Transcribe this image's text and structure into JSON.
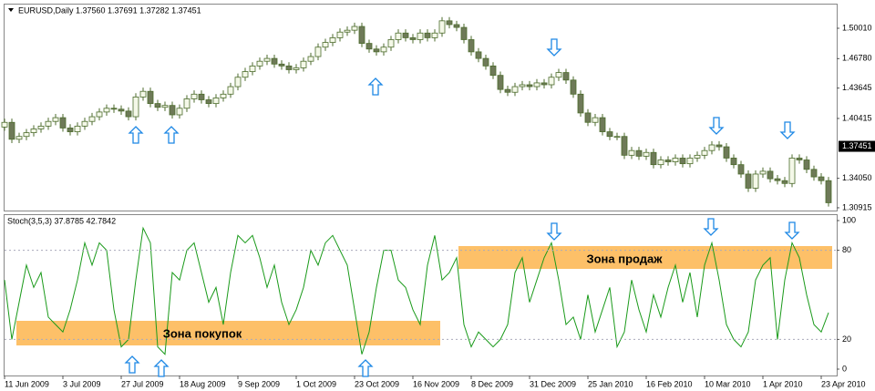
{
  "chart_data": {
    "type": "candlestick",
    "title": "EURUSD,Daily  1.37560 1.37691 1.37282 1.37451",
    "up_color": "#f4f8e8",
    "down_color": "#6e7a58",
    "wick_color": "#4c6b2c",
    "categories": [
      "11 Jun 2009",
      null,
      null,
      null,
      null,
      null,
      null,
      null,
      "3 Jul 2009",
      null,
      null,
      null,
      null,
      null,
      null,
      null,
      "27 Jul 2009",
      null,
      null,
      null,
      null,
      null,
      null,
      null,
      "18 Aug 2009",
      null,
      null,
      null,
      null,
      null,
      null,
      null,
      "9 Sep 2009",
      null,
      null,
      null,
      null,
      null,
      null,
      null,
      "1 Oct 2009",
      null,
      null,
      null,
      null,
      null,
      null,
      null,
      "23 Oct 2009",
      null,
      null,
      null,
      null,
      null,
      null,
      null,
      "16 Nov 2009",
      null,
      null,
      null,
      null,
      null,
      null,
      null,
      "8 Dec 2009",
      null,
      null,
      null,
      null,
      null,
      null,
      null,
      "31 Dec 2009",
      null,
      null,
      null,
      null,
      null,
      null,
      null,
      "25 Jan 2010",
      null,
      null,
      null,
      null,
      null,
      null,
      null,
      "16 Feb 2010",
      null,
      null,
      null,
      null,
      null,
      null,
      null,
      "10 Mar 2010",
      null,
      null,
      null,
      null,
      null,
      null,
      null,
      "1 Apr 2010",
      null,
      null,
      null,
      null,
      null,
      null,
      null,
      "23 Apr 2010",
      null
    ],
    "open": [
      1.395,
      1.4,
      1.382,
      1.385,
      1.389,
      1.393,
      1.396,
      1.401,
      1.405,
      1.394,
      1.39,
      1.396,
      1.401,
      1.406,
      1.411,
      1.415,
      1.414,
      1.412,
      1.406,
      1.427,
      1.433,
      1.42,
      1.416,
      1.418,
      1.408,
      1.415,
      1.425,
      1.43,
      1.424,
      1.42,
      1.426,
      1.43,
      1.438,
      1.448,
      1.454,
      1.46,
      1.465,
      1.468,
      1.462,
      1.46,
      1.456,
      1.458,
      1.465,
      1.47,
      1.48,
      1.485,
      1.49,
      1.496,
      1.498,
      1.502,
      1.484,
      1.478,
      1.475,
      1.48,
      1.488,
      1.495,
      1.49,
      1.488,
      1.495,
      1.49,
      1.495,
      1.508,
      1.504,
      1.501,
      1.488,
      1.475,
      1.468,
      1.46,
      1.45,
      1.435,
      1.432,
      1.438,
      1.44,
      1.438,
      1.442,
      1.44,
      1.448,
      1.453,
      1.445,
      1.43,
      1.41,
      1.4,
      1.405,
      1.39,
      1.385,
      1.385,
      1.365,
      1.37,
      1.364,
      1.368,
      1.355,
      1.36,
      1.358,
      1.362,
      1.356,
      1.362,
      1.365,
      1.37,
      1.376,
      1.374,
      1.362,
      1.355,
      1.345,
      1.33,
      1.345,
      1.348,
      1.34,
      1.338,
      1.335,
      1.362,
      1.36,
      1.35,
      1.342,
      1.338
    ],
    "high": [
      1.404,
      1.404,
      1.389,
      1.393,
      1.397,
      1.4,
      1.405,
      1.409,
      1.409,
      1.398,
      1.4,
      1.405,
      1.41,
      1.415,
      1.419,
      1.419,
      1.418,
      1.416,
      1.431,
      1.437,
      1.437,
      1.424,
      1.422,
      1.422,
      1.419,
      1.429,
      1.434,
      1.434,
      1.428,
      1.43,
      1.434,
      1.442,
      1.452,
      1.458,
      1.464,
      1.469,
      1.472,
      1.472,
      1.466,
      1.464,
      1.462,
      1.469,
      1.474,
      1.484,
      1.489,
      1.494,
      1.5,
      1.502,
      1.506,
      1.506,
      1.488,
      1.482,
      1.484,
      1.492,
      1.499,
      1.499,
      1.494,
      1.499,
      1.499,
      1.499,
      1.512,
      1.512,
      1.508,
      1.505,
      1.492,
      1.479,
      1.472,
      1.464,
      1.454,
      1.439,
      1.442,
      1.444,
      1.444,
      1.446,
      1.446,
      1.452,
      1.457,
      1.457,
      1.449,
      1.434,
      1.414,
      1.409,
      1.409,
      1.394,
      1.389,
      1.389,
      1.374,
      1.374,
      1.372,
      1.372,
      1.364,
      1.364,
      1.366,
      1.366,
      1.366,
      1.369,
      1.374,
      1.38,
      1.38,
      1.378,
      1.366,
      1.359,
      1.349,
      1.349,
      1.352,
      1.352,
      1.344,
      1.342,
      1.366,
      1.366,
      1.364,
      1.354,
      1.346,
      1.342
    ],
    "low": [
      1.391,
      1.378,
      1.378,
      1.381,
      1.385,
      1.389,
      1.392,
      1.397,
      1.39,
      1.386,
      1.386,
      1.392,
      1.397,
      1.402,
      1.407,
      1.41,
      1.408,
      1.402,
      1.402,
      1.423,
      1.416,
      1.412,
      1.412,
      1.404,
      1.404,
      1.411,
      1.421,
      1.42,
      1.416,
      1.416,
      1.422,
      1.426,
      1.434,
      1.444,
      1.45,
      1.456,
      1.461,
      1.458,
      1.456,
      1.452,
      1.452,
      1.454,
      1.461,
      1.466,
      1.476,
      1.481,
      1.486,
      1.492,
      1.494,
      1.48,
      1.474,
      1.471,
      1.471,
      1.476,
      1.484,
      1.486,
      1.484,
      1.484,
      1.486,
      1.486,
      1.491,
      1.5,
      1.497,
      1.484,
      1.471,
      1.464,
      1.456,
      1.446,
      1.431,
      1.428,
      1.428,
      1.434,
      1.434,
      1.434,
      1.436,
      1.436,
      1.444,
      1.441,
      1.426,
      1.406,
      1.396,
      1.396,
      1.386,
      1.381,
      1.381,
      1.361,
      1.361,
      1.36,
      1.36,
      1.351,
      1.351,
      1.354,
      1.354,
      1.352,
      1.352,
      1.358,
      1.361,
      1.366,
      1.37,
      1.358,
      1.351,
      1.341,
      1.326,
      1.326,
      1.341,
      1.336,
      1.334,
      1.331,
      1.331,
      1.356,
      1.346,
      1.338,
      1.334,
      1.3105
    ],
    "close": [
      1.4,
      1.382,
      1.385,
      1.389,
      1.393,
      1.396,
      1.401,
      1.405,
      1.394,
      1.39,
      1.396,
      1.401,
      1.406,
      1.411,
      1.415,
      1.414,
      1.412,
      1.406,
      1.427,
      1.433,
      1.42,
      1.416,
      1.418,
      1.408,
      1.415,
      1.425,
      1.43,
      1.424,
      1.42,
      1.426,
      1.43,
      1.438,
      1.448,
      1.454,
      1.46,
      1.465,
      1.468,
      1.462,
      1.46,
      1.456,
      1.458,
      1.465,
      1.47,
      1.48,
      1.485,
      1.49,
      1.496,
      1.498,
      1.502,
      1.484,
      1.478,
      1.475,
      1.48,
      1.488,
      1.495,
      1.49,
      1.488,
      1.495,
      1.49,
      1.495,
      1.508,
      1.504,
      1.501,
      1.488,
      1.475,
      1.468,
      1.46,
      1.45,
      1.435,
      1.432,
      1.438,
      1.44,
      1.438,
      1.442,
      1.44,
      1.448,
      1.453,
      1.445,
      1.43,
      1.41,
      1.4,
      1.405,
      1.39,
      1.385,
      1.385,
      1.365,
      1.37,
      1.364,
      1.368,
      1.355,
      1.36,
      1.358,
      1.362,
      1.356,
      1.362,
      1.365,
      1.37,
      1.376,
      1.374,
      1.362,
      1.355,
      1.345,
      1.33,
      1.345,
      1.348,
      1.34,
      1.338,
      1.335,
      1.362,
      1.36,
      1.35,
      1.342,
      1.338,
      1.3145
    ],
    "ylim": [
      1.3062,
      1.5253
    ],
    "yticks": [
      {
        "value": 1.5001,
        "label": "1.50010"
      },
      {
        "value": 1.4678,
        "label": "1.46780"
      },
      1.43645,
      1.40415,
      {
        "value": 1.3405,
        "label": "1.34050"
      },
      1.30915
    ],
    "current_price": 1.37451,
    "indicator": {
      "type": "line",
      "title": "Stoch(3,5,3) 37.8785 42.7842",
      "color": "#1a9a1a",
      "values": [
        60,
        20,
        45,
        70,
        55,
        65,
        35,
        30,
        25,
        40,
        60,
        85,
        70,
        85,
        80,
        40,
        15,
        20,
        60,
        95,
        85,
        15,
        10,
        65,
        60,
        80,
        85,
        65,
        45,
        55,
        30,
        65,
        90,
        85,
        90,
        75,
        55,
        70,
        45,
        30,
        40,
        55,
        80,
        70,
        85,
        90,
        80,
        70,
        40,
        10,
        25,
        55,
        80,
        80,
        60,
        55,
        40,
        30,
        70,
        90,
        60,
        65,
        75,
        30,
        15,
        25,
        20,
        15,
        20,
        30,
        65,
        75,
        45,
        60,
        75,
        85,
        60,
        30,
        35,
        20,
        50,
        25,
        40,
        55,
        15,
        25,
        60,
        40,
        25,
        50,
        35,
        55,
        70,
        45,
        65,
        35,
        70,
        85,
        60,
        30,
        20,
        15,
        25,
        60,
        70,
        75,
        20,
        60,
        85,
        75,
        50,
        30,
        25,
        38
      ],
      "ylim": [
        -4.3,
        104.3
      ],
      "yticks": [
        0,
        20,
        80,
        100
      ],
      "levels": [
        20,
        80
      ],
      "annotations": [
        "Зона покупок",
        "Зона продаж"
      ]
    }
  }
}
